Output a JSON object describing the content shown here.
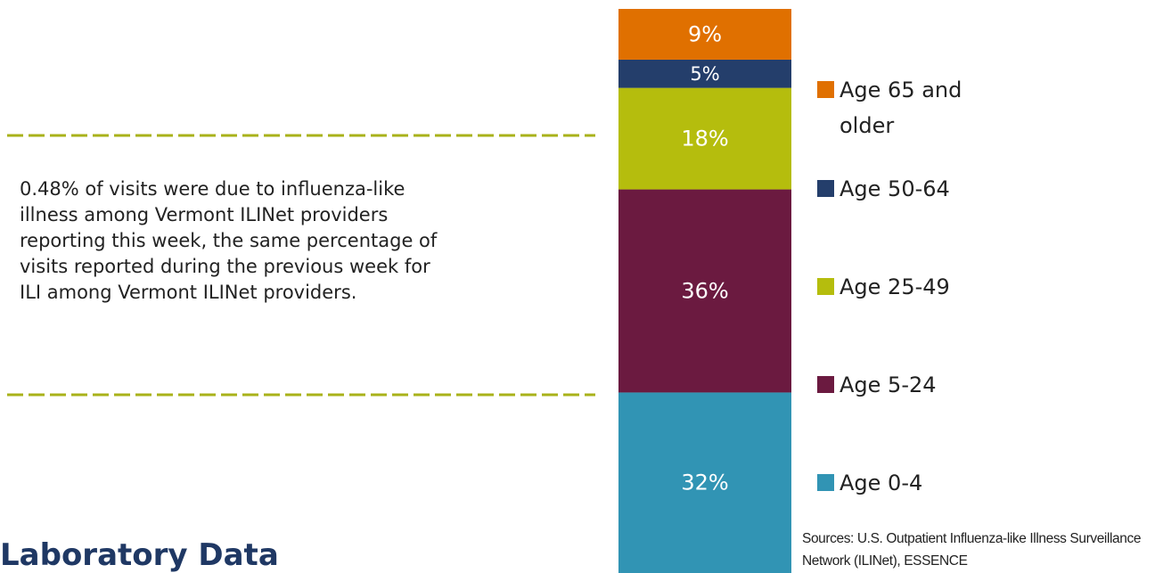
{
  "note": "0.48% of visits were due to influenza-like illness among Vermont ILINet providers reporting this week, the same percentage of visits reported during the previous week for ILI among Vermont ILINet providers.",
  "heading": "Laboratory Data",
  "sources": "Sources: U.S. Outpatient Influenza-like Illness Surveillance Network (ILINet), ESSENCE",
  "chart_data": {
    "type": "stacked_bar",
    "ylim": [
      0,
      100
    ],
    "series": [
      {
        "name": "Age 0-4",
        "color": "#3194b4",
        "values": [
          32
        ],
        "value_labels": [
          "32%"
        ]
      },
      {
        "name": "Age 5-24",
        "color": "#6b1a40",
        "values": [
          36
        ],
        "value_labels": [
          "36%"
        ]
      },
      {
        "name": "Age 25-49",
        "color": "#b5bd0d",
        "values": [
          18
        ],
        "value_labels": [
          "18%"
        ]
      },
      {
        "name": "Age 50-64",
        "color": "#243e6b",
        "values": [
          5
        ],
        "value_labels": [
          "5%"
        ]
      },
      {
        "name": "Age 65 and older",
        "color": "#e07000",
        "values": [
          9
        ],
        "value_labels": [
          "9%"
        ]
      }
    ]
  }
}
